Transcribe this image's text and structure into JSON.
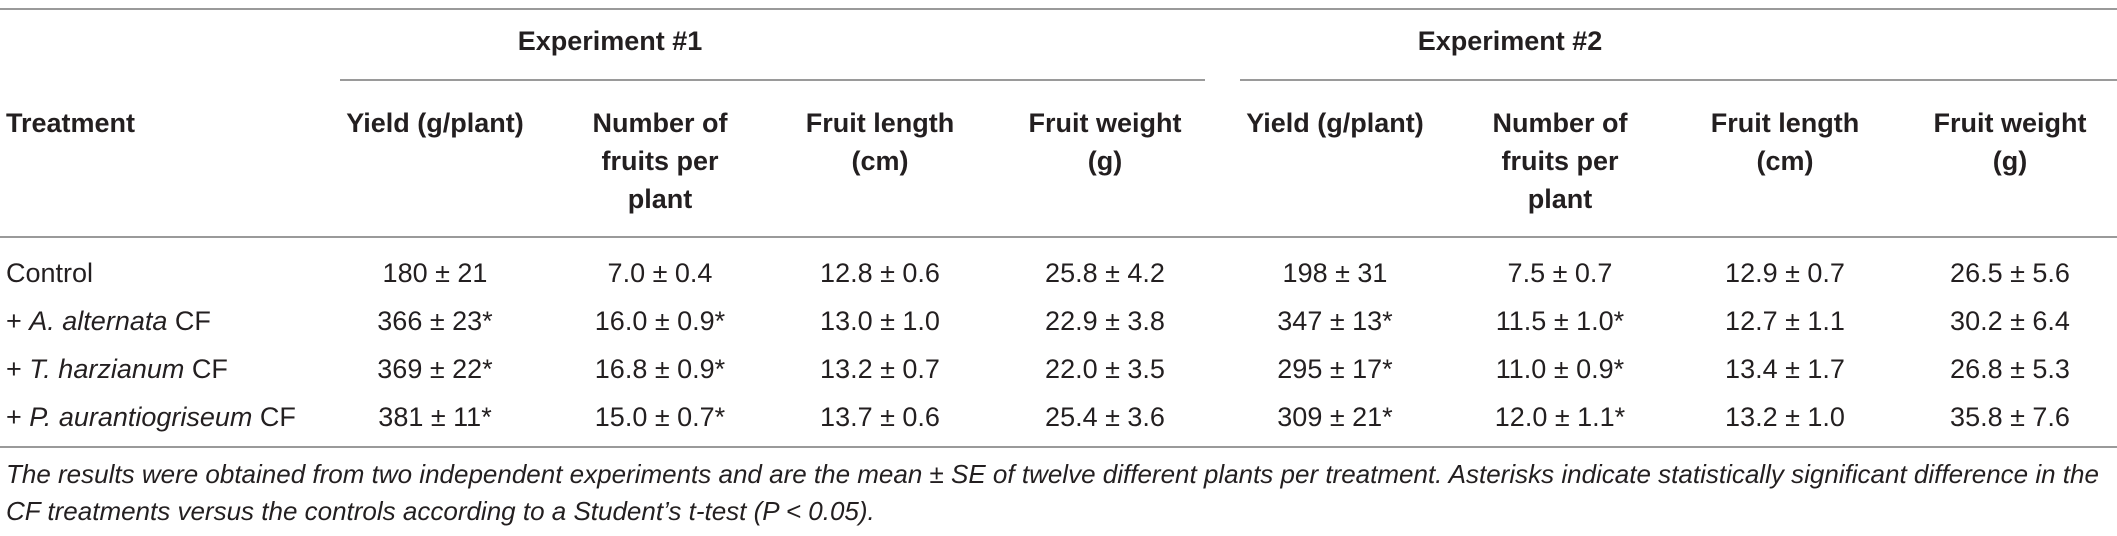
{
  "table": {
    "groups": [
      {
        "title": "Experiment #1"
      },
      {
        "title": "Experiment #2"
      }
    ],
    "treatment_header": "Treatment",
    "column_headers": [
      {
        "line1": "Yield (g/plant)",
        "line2": "",
        "line3": ""
      },
      {
        "line1": "Number of",
        "line2": "fruits per",
        "line3": "plant"
      },
      {
        "line1": "Fruit length",
        "line2": "(cm)",
        "line3": ""
      },
      {
        "line1": "Fruit weight",
        "line2": "(g)",
        "line3": ""
      },
      {
        "line1": "Yield (g/plant)",
        "line2": "",
        "line3": ""
      },
      {
        "line1": "Number of",
        "line2": "fruits per",
        "line3": "plant"
      },
      {
        "line1": "Fruit length",
        "line2": "(cm)",
        "line3": ""
      },
      {
        "line1": "Fruit weight",
        "line2": "(g)",
        "line3": ""
      }
    ],
    "rows": [
      {
        "prefix": "Control",
        "species": "",
        "suffix": "",
        "values": [
          "180 ± 21",
          "7.0 ± 0.4",
          "12.8 ± 0.6",
          "25.8 ± 4.2",
          "198 ± 31",
          "7.5 ± 0.7",
          "12.9 ± 0.7",
          "26.5 ± 5.6"
        ]
      },
      {
        "prefix": "+ ",
        "species": "A. alternata",
        "suffix": " CF",
        "values": [
          "366 ± 23*",
          "16.0 ± 0.9*",
          "13.0 ± 1.0",
          "22.9 ± 3.8",
          "347 ± 13*",
          "11.5 ± 1.0*",
          "12.7 ± 1.1",
          "30.2 ± 6.4"
        ]
      },
      {
        "prefix": "+ ",
        "species": "T. harzianum",
        "suffix": " CF",
        "values": [
          "369 ± 22*",
          "16.8 ± 0.9*",
          "13.2 ± 0.7",
          "22.0 ± 3.5",
          "295 ± 17*",
          "11.0 ± 0.9*",
          "13.4 ± 1.7",
          "26.8 ± 5.3"
        ]
      },
      {
        "prefix": "+ ",
        "species": "P. aurantiogriseum",
        "suffix": " CF",
        "values": [
          "381 ± 11*",
          "15.0 ± 0.7*",
          "13.7 ± 0.6",
          "25.4 ± 3.6",
          "309 ± 21*",
          "12.0 ± 1.1*",
          "13.2 ± 1.0",
          "35.8 ± 7.6"
        ]
      }
    ],
    "footnote": "The results were obtained from two independent experiments and are the mean ± SE of twelve different plants per treatment. Asterisks indicate statistically significant difference in the CF treatments versus the controls according to a Student’s t-test (P < 0.05)."
  }
}
